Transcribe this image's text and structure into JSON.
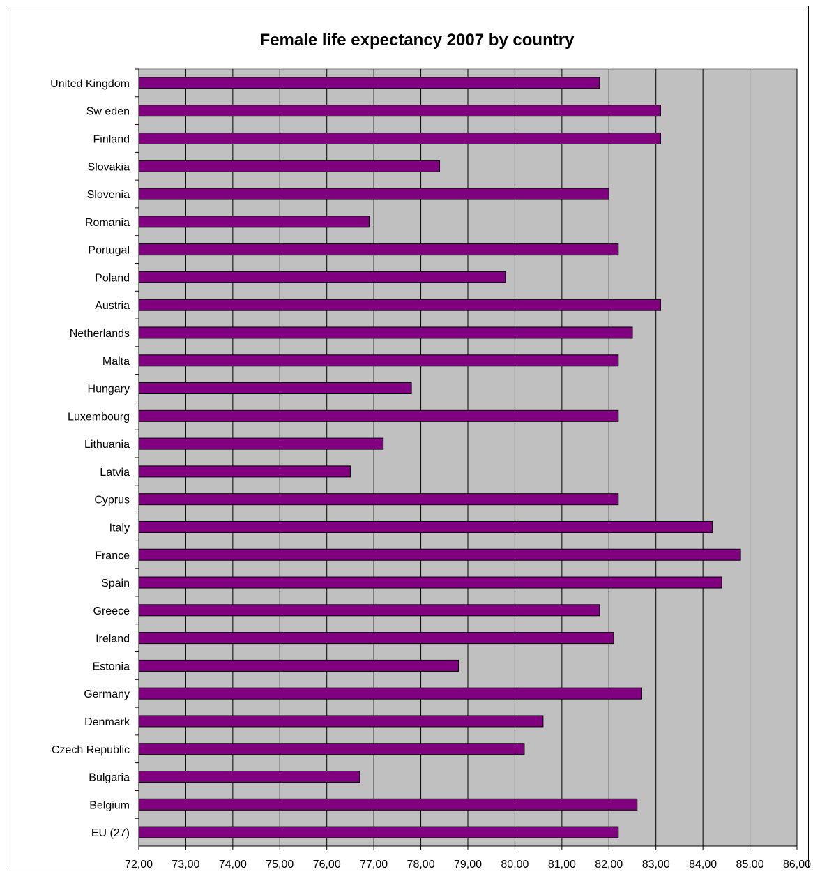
{
  "chart_data": {
    "type": "bar",
    "orientation": "horizontal",
    "title": "Female life expectancy 2007 by country",
    "xlabel": "",
    "ylabel": "",
    "xlim": [
      72,
      86
    ],
    "x_ticks": [
      "72,00",
      "73,00",
      "74,00",
      "75,00",
      "76,00",
      "77,00",
      "78,00",
      "79,00",
      "80,00",
      "81,00",
      "82,00",
      "83,00",
      "84,00",
      "85,00",
      "86,00"
    ],
    "grid": "vertical",
    "legend": "none",
    "colors": {
      "bar": "#800080",
      "plot_bg": "#c0c0c0",
      "grid": "#000000"
    },
    "categories": [
      "United Kingdom",
      "Sw eden",
      "Finland",
      "Slovakia",
      "Slovenia",
      "Romania",
      "Portugal",
      "Poland",
      "Austria",
      "Netherlands",
      "Malta",
      "Hungary",
      "Luxembourg",
      "Lithuania",
      "Latvia",
      "Cyprus",
      "Italy",
      "France",
      "Spain",
      "Greece",
      "Ireland",
      "Estonia",
      "Germany",
      "Denmark",
      "Czech Republic",
      "Bulgaria",
      "Belgium",
      "EU (27)"
    ],
    "values": [
      81.8,
      83.1,
      83.1,
      78.4,
      82.0,
      76.9,
      82.2,
      79.8,
      83.1,
      82.5,
      82.2,
      77.8,
      82.2,
      77.2,
      76.5,
      82.2,
      84.2,
      84.8,
      84.4,
      81.8,
      82.1,
      78.8,
      82.7,
      80.6,
      80.2,
      76.7,
      82.6,
      82.2
    ]
  }
}
